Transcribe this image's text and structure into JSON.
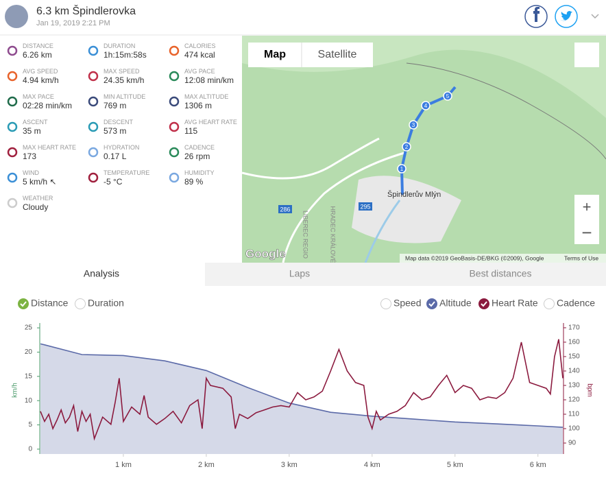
{
  "header": {
    "title": "6.3 km Špindlerovka",
    "date": "Jan 19, 2019 2:21 PM"
  },
  "stats": [
    {
      "label": "DISTANCE",
      "value": "6.26 km",
      "color": "#8e4b8e"
    },
    {
      "label": "DURATION",
      "value": "1h:15m:58s",
      "color": "#3b8fd6"
    },
    {
      "label": "CALORIES",
      "value": "474 kcal",
      "color": "#e8632b"
    },
    {
      "label": "AVG SPEED",
      "value": "4.94 km/h",
      "color": "#e8632b"
    },
    {
      "label": "MAX SPEED",
      "value": "24.35 km/h",
      "color": "#c0304a"
    },
    {
      "label": "AVG PACE",
      "value": "12:08 min/km",
      "color": "#2a8a5a"
    },
    {
      "label": "MAX PACE",
      "value": "02:28 min/km",
      "color": "#1f6b4a"
    },
    {
      "label": "MIN ALTITUDE",
      "value": "769 m",
      "color": "#3a4a7a"
    },
    {
      "label": "MAX ALTITUDE",
      "value": "1306 m",
      "color": "#3a4a7a"
    },
    {
      "label": "ASCENT",
      "value": "35 m",
      "color": "#2a9bb5"
    },
    {
      "label": "DESCENT",
      "value": "573 m",
      "color": "#2a9bb5"
    },
    {
      "label": "AVG HEART RATE",
      "value": "115",
      "color": "#c0304a"
    },
    {
      "label": "MAX HEART RATE",
      "value": "173",
      "color": "#a0203e"
    },
    {
      "label": "HYDRATION",
      "value": "0.17 L",
      "color": "#7aa8e0"
    },
    {
      "label": "CADENCE",
      "value": "26 rpm",
      "color": "#2a8a5a"
    },
    {
      "label": "WIND",
      "value": "5 km/h ↖",
      "color": "#3b8fd6"
    },
    {
      "label": "TEMPERATURE",
      "value": "-5 °C",
      "color": "#a0203e"
    },
    {
      "label": "HUMIDITY",
      "value": "89 %",
      "color": "#7aa8e0"
    },
    {
      "label": "WEATHER",
      "value": "Cloudy",
      "color": "#cccccc"
    }
  ],
  "map": {
    "buttons": [
      "Map",
      "Satellite"
    ],
    "zoom": [
      "+",
      "−"
    ],
    "place": "Špindlerův Mlýn",
    "roads": [
      "286",
      "295"
    ],
    "regions": [
      "LIBEREC REGIO",
      "HRADEC KRÁLOVÉ"
    ],
    "markers": [
      "1",
      "2",
      "3",
      "4",
      "5"
    ],
    "logo": "Google",
    "attribution": "Map data ©2019 GeoBasis-DE/BKG (©2009), Google",
    "terms": "Terms of Use"
  },
  "tabs": [
    "Analysis",
    "Laps",
    "Best distances"
  ],
  "chart_data": {
    "type": "line",
    "x_toggles": [
      {
        "label": "Distance",
        "checked": true,
        "color": "#7cb342"
      },
      {
        "label": "Duration",
        "checked": false,
        "color": "#999999"
      }
    ],
    "y_toggles": [
      {
        "label": "Speed",
        "checked": false,
        "color": "#999999"
      },
      {
        "label": "Altitude",
        "checked": true,
        "color": "#5b6aa8"
      },
      {
        "label": "Heart Rate",
        "checked": true,
        "color": "#8b1a3e"
      },
      {
        "label": "Cadence",
        "checked": false,
        "color": "#999999"
      }
    ],
    "ylabel": "km/h",
    "y2label": "bpm",
    "xlim": [
      0,
      6.3
    ],
    "xticks": [
      {
        "value": 1,
        "label": "1 km"
      },
      {
        "value": 2,
        "label": "2 km"
      },
      {
        "value": 3,
        "label": "3 km"
      },
      {
        "value": 4,
        "label": "4 km"
      },
      {
        "value": 5,
        "label": "5 km"
      },
      {
        "value": 6,
        "label": "6 km"
      }
    ],
    "ylim": [
      -1,
      26
    ],
    "yticks": [
      0,
      5,
      10,
      15,
      20,
      25
    ],
    "y2lim": [
      82.4,
      173.3
    ],
    "y2ticks": [
      90,
      100,
      110,
      120,
      130,
      140,
      150,
      160,
      170
    ],
    "series": [
      {
        "color": "#5b6aa8",
        "fill": "#d5d9e8",
        "x": [
          0,
          0.05,
          0.5,
          1,
          1.5,
          2,
          2.5,
          3,
          3.5,
          4,
          4.5,
          5,
          5.5,
          6,
          6.3
        ],
        "values": [
          21.7,
          21.5,
          19.5,
          19.3,
          18.2,
          16.2,
          12.7,
          9.5,
          7.6,
          6.8,
          6.2,
          5.6,
          5.2,
          4.8,
          4.5
        ]
      },
      {
        "color": "#8b1a3e",
        "axis": "y2",
        "x": [
          0,
          0.05,
          0.1,
          0.15,
          0.2,
          0.25,
          0.3,
          0.35,
          0.4,
          0.45,
          0.5,
          0.55,
          0.6,
          0.65,
          0.75,
          0.85,
          0.9,
          0.95,
          1,
          1.1,
          1.2,
          1.25,
          1.3,
          1.4,
          1.5,
          1.6,
          1.7,
          1.8,
          1.9,
          1.95,
          2,
          2.05,
          2.2,
          2.3,
          2.35,
          2.4,
          2.5,
          2.6,
          2.7,
          2.8,
          2.9,
          3,
          3.1,
          3.2,
          3.3,
          3.4,
          3.5,
          3.6,
          3.7,
          3.8,
          3.9,
          3.95,
          4,
          4.05,
          4.1,
          4.2,
          4.3,
          4.4,
          4.5,
          4.6,
          4.7,
          4.8,
          4.9,
          5,
          5.1,
          5.2,
          5.3,
          5.4,
          5.5,
          5.6,
          5.7,
          5.8,
          5.9,
          6,
          6.1,
          6.15,
          6.2,
          6.25,
          6.3
        ],
        "values": [
          112,
          105,
          110,
          100,
          106,
          113,
          104,
          108,
          116,
          98,
          112,
          105,
          110,
          93,
          108,
          103,
          118,
          135,
          105,
          115,
          110,
          123,
          108,
          103,
          107,
          112,
          104,
          116,
          120,
          100,
          135,
          130,
          128,
          122,
          100,
          110,
          107,
          111,
          113,
          115,
          116,
          115,
          125,
          120,
          122,
          126,
          140,
          155,
          140,
          132,
          130,
          108,
          100,
          112,
          106,
          110,
          112,
          116,
          125,
          120,
          122,
          130,
          137,
          125,
          130,
          128,
          120,
          122,
          121,
          125,
          135,
          160,
          132,
          130,
          128,
          124,
          150,
          162,
          135
        ]
      }
    ]
  }
}
